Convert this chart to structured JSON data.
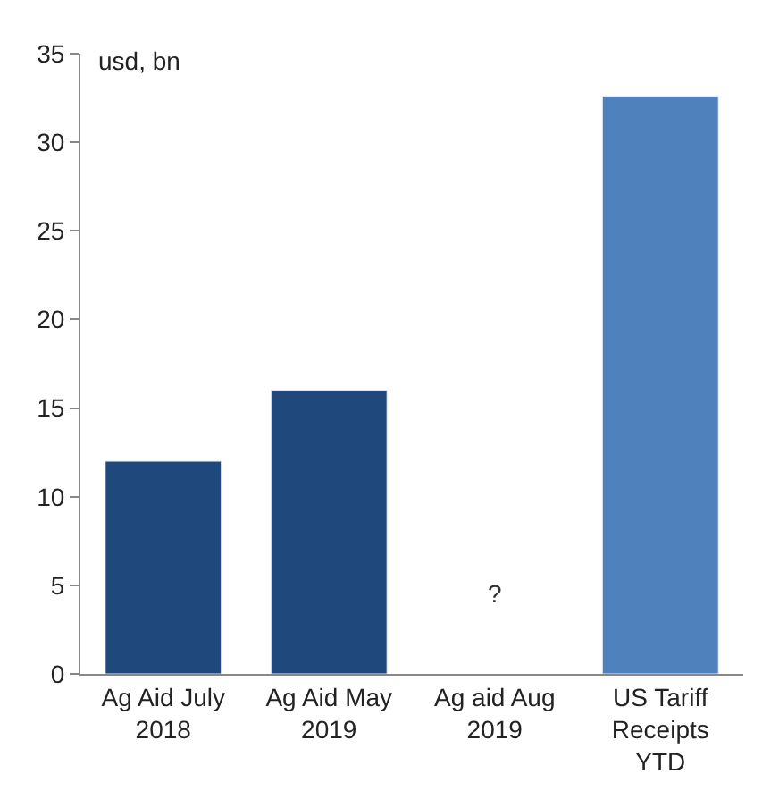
{
  "chart_data": {
    "type": "bar",
    "ylabel": "usd, bn",
    "categories": [
      "Ag Aid July 2018",
      "Ag Aid May 2019",
      "Ag aid Aug 2019",
      "US Tariff Receipts YTD"
    ],
    "values": [
      12,
      16,
      null,
      32.6
    ],
    "colors": [
      "#1f497d",
      "#1f497d",
      "#1f497d",
      "#4f81bd"
    ],
    "annotations": [
      "?"
    ],
    "ylim": [
      0,
      35
    ],
    "yticks": [
      0,
      5,
      10,
      15,
      20,
      25,
      30,
      35
    ]
  }
}
